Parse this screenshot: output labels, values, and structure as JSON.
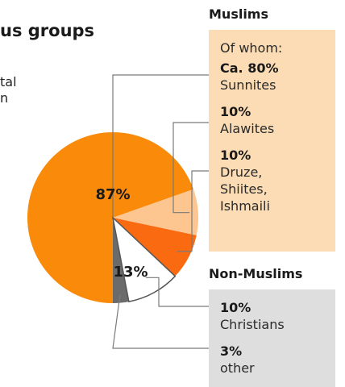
{
  "title_fragment": "us groups",
  "subtitle_lines": [
    "tal",
    "n"
  ],
  "colors": {
    "sunnites": "#f98a0a",
    "alawites": "#fdc690",
    "druze": "#fa6a10",
    "christians": "#ffffff",
    "other": "#6b6b6b",
    "muslims_box": "#fbdcb5",
    "nonmuslims_box": "#dedede",
    "leader": "#7a7a7a"
  },
  "muslims": {
    "heading": "Muslims",
    "of_whom": "Of whom:",
    "entries": [
      {
        "value": "Ca. 80%",
        "label": [
          "Sunnites"
        ]
      },
      {
        "value": "10%",
        "label": [
          "Alawites"
        ]
      },
      {
        "value": "10%",
        "label": [
          "Druze,",
          "Shiites,",
          "Ishmaili"
        ]
      }
    ]
  },
  "non_muslims": {
    "heading": "Non-Muslims",
    "entries": [
      {
        "value": "10%",
        "label": [
          "Christians"
        ]
      },
      {
        "value": "3%",
        "label": [
          "other"
        ]
      }
    ]
  },
  "chart_data": {
    "type": "pie",
    "title": "",
    "slice_labels": [
      "87%",
      "13%"
    ],
    "groups": [
      {
        "name": "Muslims",
        "percent": 87,
        "parts": [
          {
            "name": "Sunnites",
            "percent_of_group": 80
          },
          {
            "name": "Alawites",
            "percent_of_group": 10
          },
          {
            "name": "Druze, Shiites, Ishmaili",
            "percent_of_group": 10
          }
        ]
      },
      {
        "name": "Non-Muslims",
        "percent": 13,
        "parts": [
          {
            "name": "Christians",
            "percent_of_total": 10
          },
          {
            "name": "other",
            "percent_of_total": 3
          }
        ]
      }
    ]
  }
}
